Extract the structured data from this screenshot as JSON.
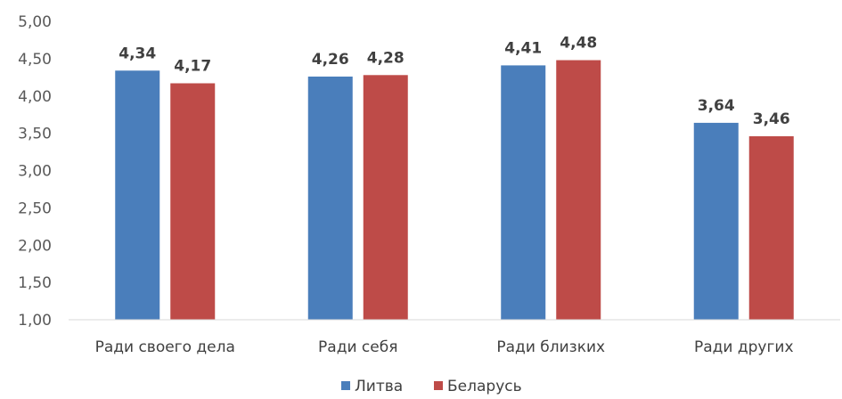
{
  "chart_data": {
    "type": "bar",
    "title": "",
    "xlabel": "",
    "ylabel": "",
    "categories": [
      "Ради своего дела",
      "Ради себя",
      "Ради близких",
      "Ради других"
    ],
    "series": [
      {
        "name": "Литва",
        "color": "#4a7ebb",
        "values": [
          4.34,
          4.26,
          4.41,
          3.64
        ],
        "labels": [
          "4,34",
          "4,26",
          "4,41",
          "3,64"
        ]
      },
      {
        "name": "Беларусь",
        "color": "#be4b48",
        "values": [
          4.17,
          4.28,
          4.48,
          3.46
        ],
        "labels": [
          "4,17",
          "4,28",
          "4,48",
          "3,46"
        ]
      }
    ],
    "ylim": [
      1.0,
      5.0
    ],
    "yticks": [
      1.0,
      1.5,
      2.0,
      2.5,
      3.0,
      3.5,
      4.0,
      4.5,
      5.0
    ],
    "ytick_labels": [
      "1,00",
      "1,50",
      "2,00",
      "2,50",
      "3,00",
      "3,50",
      "4,00",
      "4,50",
      "5,00"
    ],
    "grid": false,
    "legend_position": "bottom"
  }
}
